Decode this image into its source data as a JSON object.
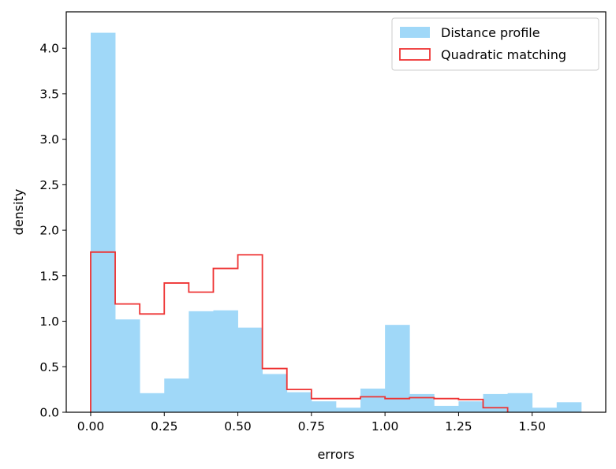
{
  "chart_data": {
    "type": "histogram",
    "xlabel": "errors",
    "ylabel": "density",
    "xlim": [
      -0.083,
      1.75
    ],
    "ylim": [
      0,
      4.4
    ],
    "xticks": [
      0.0,
      0.25,
      0.5,
      0.75,
      1.0,
      1.25,
      1.5
    ],
    "xtick_labels": [
      "0.00",
      "0.25",
      "0.50",
      "0.75",
      "1.00",
      "1.25",
      "1.50"
    ],
    "yticks": [
      0.0,
      0.5,
      1.0,
      1.5,
      2.0,
      2.5,
      3.0,
      3.5,
      4.0
    ],
    "ytick_labels": [
      "0.0",
      "0.5",
      "1.0",
      "1.5",
      "2.0",
      "2.5",
      "3.0",
      "3.5",
      "4.0"
    ],
    "legend_position": "top-right",
    "series": [
      {
        "name": "Distance profile",
        "style": "filled-bars",
        "color": "#a0d8f8",
        "bin_edges": [
          0.0,
          0.0833,
          0.1667,
          0.25,
          0.3333,
          0.4167,
          0.5,
          0.5833,
          0.6667,
          0.75,
          0.8333,
          0.9167,
          1.0,
          1.0833,
          1.1667,
          1.25,
          1.3333,
          1.4167,
          1.5,
          1.5833,
          1.6667
        ],
        "values": [
          4.17,
          1.02,
          0.21,
          0.37,
          1.11,
          1.12,
          0.93,
          0.42,
          0.22,
          0.12,
          0.05,
          0.26,
          0.96,
          0.2,
          0.07,
          0.12,
          0.2,
          0.21,
          0.05,
          0.11
        ]
      },
      {
        "name": "Quadratic matching",
        "style": "step-outline",
        "color": "#ee3333",
        "bin_edges": [
          0.0,
          0.0833,
          0.1667,
          0.25,
          0.3333,
          0.4167,
          0.5,
          0.5833,
          0.6667,
          0.75,
          0.8333,
          0.9167,
          1.0,
          1.0833,
          1.1667,
          1.25,
          1.3333,
          1.4167
        ],
        "values": [
          1.76,
          1.19,
          1.08,
          1.42,
          1.32,
          1.58,
          1.73,
          0.48,
          0.25,
          0.15,
          0.15,
          0.17,
          0.15,
          0.16,
          0.15,
          0.14,
          0.05
        ]
      }
    ]
  }
}
